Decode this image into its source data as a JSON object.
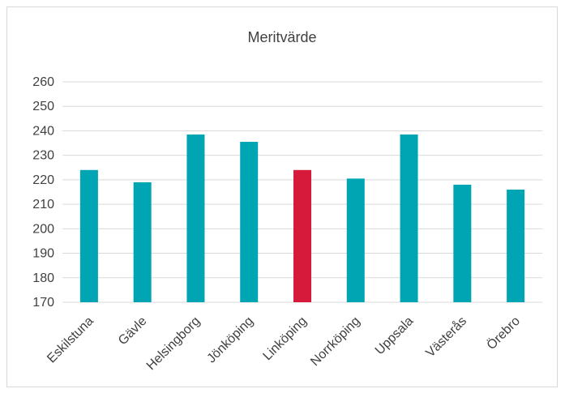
{
  "chart_data": {
    "type": "bar",
    "title": "Meritvärde",
    "xlabel": "",
    "ylabel": "",
    "categories": [
      "Eskilstuna",
      "Gävle",
      "Helsingborg",
      "Jönköping",
      "Linköping",
      "Norrköping",
      "Uppsala",
      "Västerås",
      "Örebro"
    ],
    "values": [
      224,
      219,
      238.5,
      235.5,
      224,
      220.5,
      238.5,
      218,
      216
    ],
    "ylim": [
      170,
      260
    ],
    "yticks": [
      170,
      180,
      190,
      200,
      210,
      220,
      230,
      240,
      250,
      260
    ],
    "grid": true,
    "legend": "none",
    "colors": {
      "bar": "#00A5B4",
      "highlight": "#D61A3C",
      "grid": "#d9d9d9",
      "text": "#404040"
    },
    "highlight_category": "Linköping"
  }
}
